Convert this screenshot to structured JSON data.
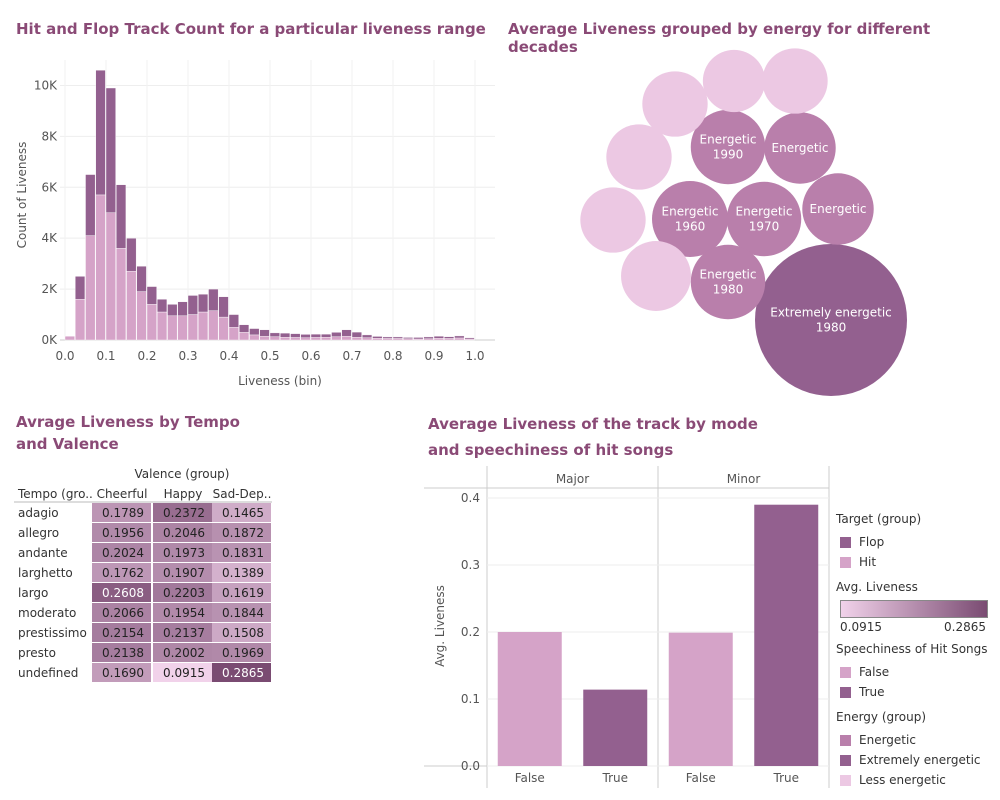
{
  "colors": {
    "title": "#8a4a76",
    "flop": "#93608f",
    "hit": "#d5a3c8",
    "less_energetic": "#ecc8e3",
    "energetic": "#b97fab",
    "extremely_energetic": "#93608f",
    "heat_low": "#f1d2ea",
    "heat_high": "#7a4b72"
  },
  "titles": {
    "histogram": "Hit and Flop Track Count for a particular liveness range",
    "bubbles": "Average Liveness grouped by energy for different decades",
    "table": "Avrage Liveness by Tempo and Valence",
    "bars": "Average Liveness of the track by mode and speechiness of hit songs"
  },
  "chart_data": [
    {
      "type": "bar",
      "title": "Hit and Flop Track Count for a particular liveness range",
      "xlabel": "Liveness (bin)",
      "ylabel": "Count of Liveness",
      "stacked": true,
      "bin_width": 0.025,
      "ylim": [
        0,
        11000
      ],
      "xlim": [
        0,
        1
      ],
      "xticks": [
        "0.0",
        "0.1",
        "0.2",
        "0.3",
        "0.4",
        "0.5",
        "0.6",
        "0.7",
        "0.8",
        "0.9",
        "1.0"
      ],
      "yticks": [
        "0K",
        "2K",
        "4K",
        "6K",
        "8K",
        "10K"
      ],
      "bins": [
        0.0,
        0.025,
        0.05,
        0.075,
        0.1,
        0.125,
        0.15,
        0.175,
        0.2,
        0.225,
        0.25,
        0.275,
        0.3,
        0.325,
        0.35,
        0.375,
        0.4,
        0.425,
        0.45,
        0.475,
        0.5,
        0.525,
        0.55,
        0.575,
        0.6,
        0.625,
        0.65,
        0.675,
        0.7,
        0.725,
        0.75,
        0.775,
        0.8,
        0.825,
        0.85,
        0.875,
        0.9,
        0.925,
        0.95,
        0.975
      ],
      "series": [
        {
          "name": "Hit",
          "values": [
            150,
            1600,
            4100,
            5700,
            5000,
            3600,
            2700,
            1900,
            1400,
            1100,
            950,
            950,
            1000,
            1100,
            1150,
            900,
            500,
            300,
            200,
            150,
            130,
            110,
            100,
            90,
            100,
            110,
            130,
            150,
            110,
            90,
            70,
            60,
            60,
            50,
            40,
            50,
            70,
            60,
            80,
            40
          ]
        },
        {
          "name": "Flop",
          "values": [
            0,
            900,
            2400,
            4900,
            4900,
            2500,
            1300,
            1000,
            700,
            500,
            450,
            550,
            750,
            700,
            850,
            800,
            500,
            300,
            250,
            250,
            150,
            160,
            150,
            130,
            130,
            120,
            170,
            250,
            200,
            110,
            70,
            60,
            60,
            50,
            60,
            70,
            80,
            70,
            80,
            50
          ]
        }
      ]
    },
    {
      "type": "bubble",
      "title": "Average Liveness grouped by energy for different decades",
      "bubbles": [
        {
          "label": "Extremely energetic\n1980",
          "group": "Extremely energetic",
          "r_rel": 1.0
        },
        {
          "label": "Energetic\n1990",
          "group": "Energetic",
          "r_rel": 0.49
        },
        {
          "label": "Energetic",
          "group": "Energetic",
          "r_rel": 0.47
        },
        {
          "label": "Energetic\n1960",
          "group": "Energetic",
          "r_rel": 0.5
        },
        {
          "label": "Energetic\n1970",
          "group": "Energetic",
          "r_rel": 0.49
        },
        {
          "label": "Energetic",
          "group": "Energetic",
          "r_rel": 0.47
        },
        {
          "label": "Energetic\n1980",
          "group": "Energetic",
          "r_rel": 0.49
        },
        {
          "label": "",
          "group": "Less energetic",
          "r_rel": 0.43
        },
        {
          "label": "",
          "group": "Less energetic",
          "r_rel": 0.41
        },
        {
          "label": "",
          "group": "Less energetic",
          "r_rel": 0.43
        },
        {
          "label": "",
          "group": "Less energetic",
          "r_rel": 0.43
        },
        {
          "label": "",
          "group": "Less energetic",
          "r_rel": 0.43
        },
        {
          "label": "",
          "group": "Less energetic",
          "r_rel": 0.46
        }
      ]
    },
    {
      "type": "heatmap",
      "title": "Avrage Liveness by Tempo and Valence",
      "column_group_label": "Valence (group)",
      "row_header": "Tempo (gro..",
      "columns": [
        "Cheerful",
        "Happy",
        "Sad-Dep.."
      ],
      "rows": [
        "adagio",
        "allegro",
        "andante",
        "larghetto",
        "largo",
        "moderato",
        "prestissimo",
        "presto",
        "undefined"
      ],
      "values": [
        [
          0.1789,
          0.2372,
          0.1465
        ],
        [
          0.1956,
          0.2046,
          0.1872
        ],
        [
          0.2024,
          0.1973,
          0.1831
        ],
        [
          0.1762,
          0.1907,
          0.1389
        ],
        [
          0.2608,
          0.2203,
          0.1619
        ],
        [
          0.2066,
          0.1954,
          0.1844
        ],
        [
          0.2154,
          0.2137,
          0.1508
        ],
        [
          0.2138,
          0.2002,
          0.1969
        ],
        [
          0.169,
          0.0915,
          0.2865
        ]
      ],
      "range": [
        0.0915,
        0.2865
      ]
    },
    {
      "type": "bar",
      "title": "Average Liveness of the track by mode and speechiness of hit songs",
      "ylabel": "Avg. Liveness",
      "ylim": [
        0,
        0.4
      ],
      "yticks": [
        "0.0",
        "0.1",
        "0.2",
        "0.3",
        "0.4"
      ],
      "panels": [
        {
          "name": "Major",
          "categories": [
            "False",
            "True"
          ],
          "values": [
            0.2,
            0.114
          ]
        },
        {
          "name": "Minor",
          "categories": [
            "False",
            "True"
          ],
          "values": [
            0.199,
            0.39
          ]
        }
      ]
    }
  ],
  "legend": {
    "target_title": "Target (group)",
    "target_items": [
      "Flop",
      "Hit"
    ],
    "liveness_title": "Avg. Liveness",
    "liveness_min": "0.0915",
    "liveness_max": "0.2865",
    "speech_title": "Speechiness of Hit Songs",
    "speech_items": [
      "False",
      "True"
    ],
    "energy_title": "Energy (group)",
    "energy_items": [
      "Energetic",
      "Extremely energetic",
      "Less energetic"
    ]
  }
}
